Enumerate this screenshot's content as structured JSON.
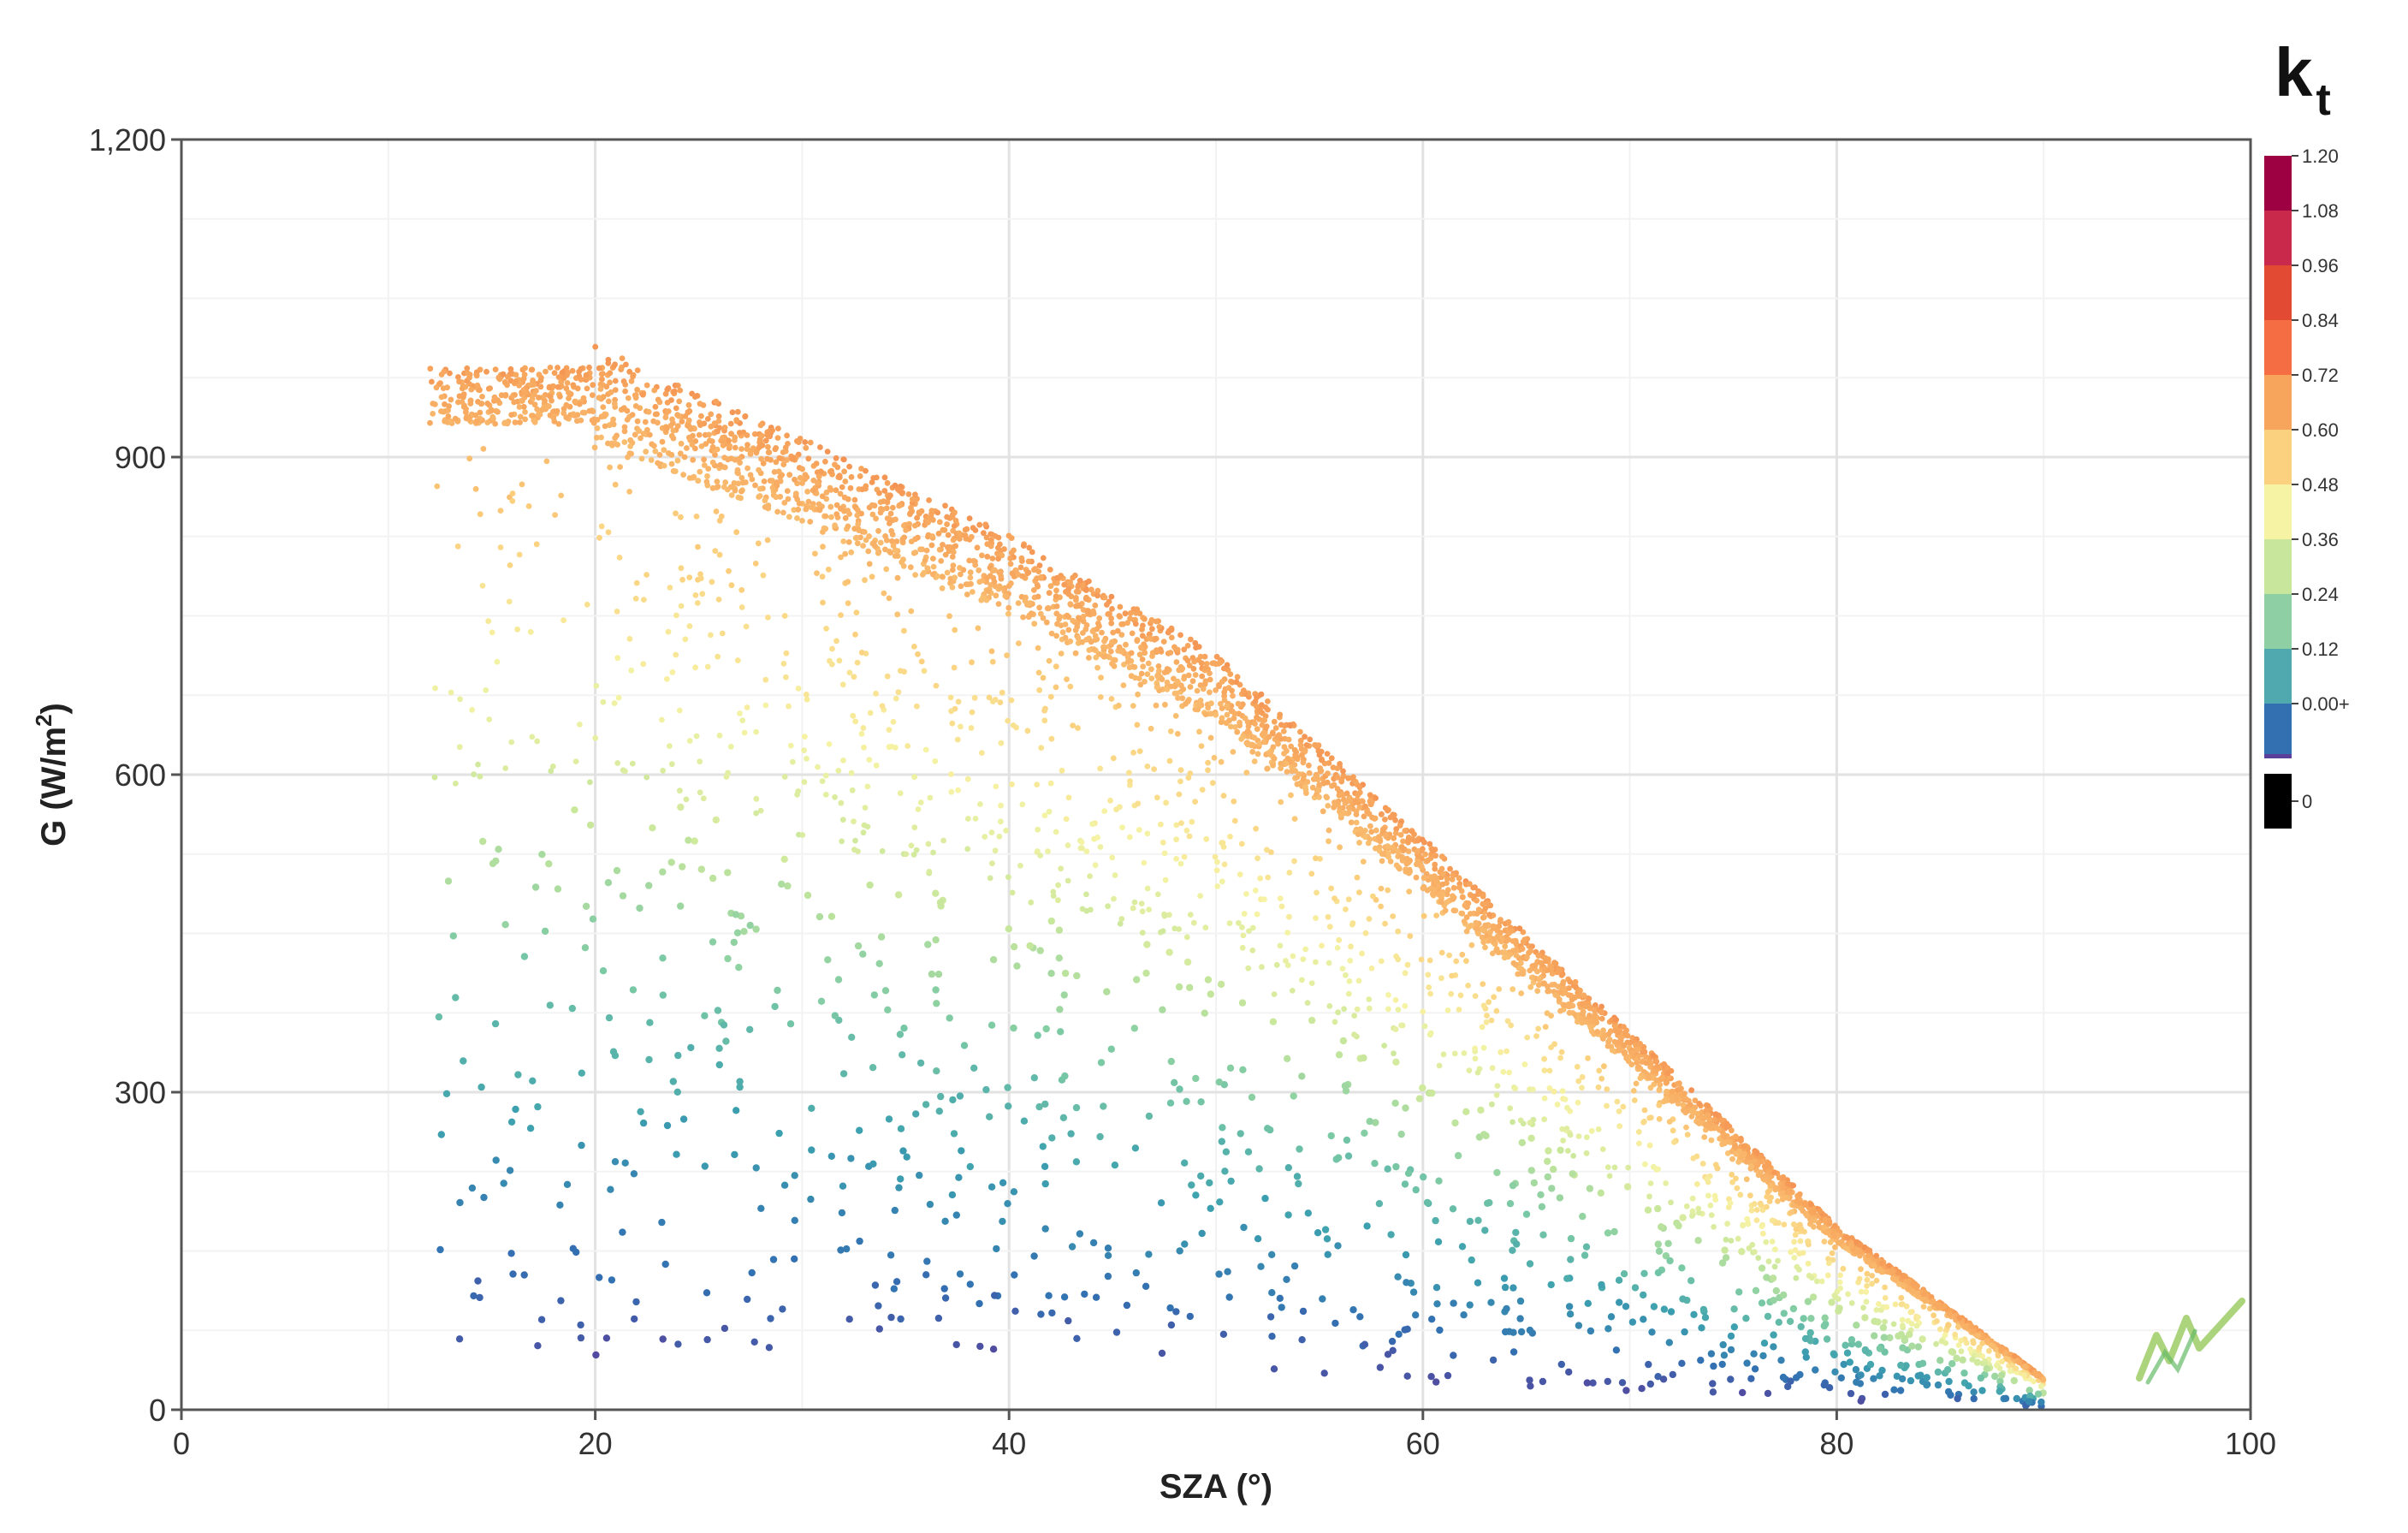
{
  "chart_data": {
    "type": "scatter",
    "xlabel": "SZA (°)",
    "ylabel_main": "G (W/m",
    "ylabel_sup": "2",
    "ylabel_end": ")",
    "xlim": [
      0,
      100
    ],
    "ylim": [
      0,
      1200
    ],
    "x_ticks": [
      0,
      20,
      40,
      60,
      80,
      100
    ],
    "y_ticks": [
      0,
      300,
      600,
      900,
      1200
    ],
    "x_tick_labels": [
      "0",
      "20",
      "40",
      "60",
      "80",
      "100"
    ],
    "y_tick_labels": [
      "0",
      "300",
      "600",
      "900",
      "1,200"
    ],
    "grid": true,
    "colorbar": {
      "title_main": "k",
      "title_sub": "t",
      "labels": [
        "1.20",
        "1.08",
        "0.96",
        "0.84",
        "0.72",
        "0.60",
        "0.48",
        "0.36",
        "0.24",
        "0.12",
        "0.00+",
        "0"
      ],
      "colors": [
        "#9e0142",
        "#c92a4b",
        "#e34a33",
        "#f46d43",
        "#f7a45c",
        "#fbd07e",
        "#f6f3a5",
        "#c8e79c",
        "#8ed0a4",
        "#4fa9af",
        "#3370b2",
        "#5a3f9b",
        "#000000"
      ]
    },
    "series_description_points": [
      {
        "sza": 12,
        "g_upper": 990,
        "g_lower": 930
      },
      {
        "sza": 20,
        "g_upper": 985,
        "g_lower": 900
      },
      {
        "sza": 30,
        "g_upper": 900,
        "g_lower": 760
      },
      {
        "sza": 40,
        "g_upper": 810,
        "g_lower": 640
      },
      {
        "sza": 50,
        "g_upper": 700,
        "g_lower": 480
      },
      {
        "sza": 60,
        "g_upper": 530,
        "g_lower": 320
      },
      {
        "sza": 70,
        "g_upper": 350,
        "g_lower": 180
      },
      {
        "sza": 80,
        "g_upper": 170,
        "g_lower": 60
      },
      {
        "sza": 90,
        "g_upper": 30,
        "g_lower": 0
      }
    ]
  }
}
